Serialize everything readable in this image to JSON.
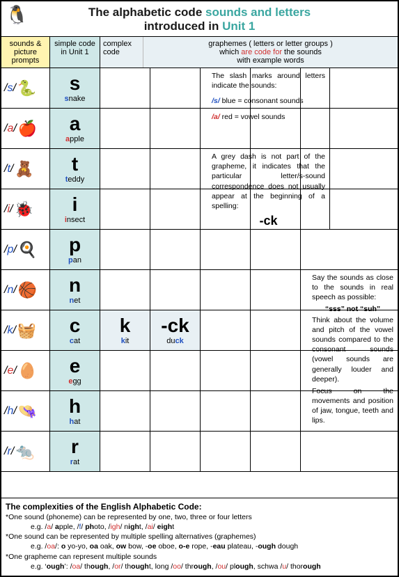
{
  "title": {
    "line1a": "The alphabetic code ",
    "line1b": "sounds and letters",
    "line2a": "introduced in ",
    "line2b": "Unit 1"
  },
  "headers": {
    "col1": "sounds & picture prompts",
    "col2": "simple code in Unit 1",
    "col3a": "complex code",
    "col3b1": "graphemes  ( letters or letter groups )",
    "col3b2a": "which ",
    "col3b2b": "are code for",
    "col3b2c": " the sounds",
    "col3b3": "with example words"
  },
  "rows": [
    {
      "sound": "s",
      "vowel": false,
      "icon": "🐍",
      "graph": "s",
      "word_pre": "",
      "word_hl": "s",
      "word_post": "nake"
    },
    {
      "sound": "a",
      "vowel": true,
      "icon": "🍎",
      "graph": "a",
      "word_pre": "",
      "word_hl": "a",
      "word_post": "pple"
    },
    {
      "sound": "t",
      "vowel": false,
      "icon": "🧸",
      "graph": "t",
      "word_pre": "",
      "word_hl": "t",
      "word_post": "eddy"
    },
    {
      "sound": "i",
      "vowel": true,
      "icon": "🐞",
      "graph": "i",
      "word_pre": "",
      "word_hl": "i",
      "word_post": "nsect"
    },
    {
      "sound": "p",
      "vowel": false,
      "icon": "🍳",
      "graph": "p",
      "word_pre": "",
      "word_hl": "p",
      "word_post": "an"
    },
    {
      "sound": "n",
      "vowel": false,
      "icon": "🏀",
      "graph": "n",
      "word_pre": "",
      "word_hl": "n",
      "word_post": "et"
    },
    {
      "sound": "k",
      "vowel": false,
      "icon": "🧺",
      "graph": "c",
      "word_pre": "",
      "word_hl": "c",
      "word_post": "at",
      "complex": [
        {
          "graph": "k",
          "word_pre": "",
          "word_hl": "k",
          "word_post": "it"
        },
        {
          "graph": "-ck",
          "word_pre": "du",
          "word_hl": "ck",
          "word_post": ""
        }
      ]
    },
    {
      "sound": "e",
      "vowel": true,
      "icon": "🥚",
      "graph": "e",
      "word_pre": "",
      "word_hl": "e",
      "word_post": "gg"
    },
    {
      "sound": "h",
      "vowel": false,
      "icon": "👒",
      "graph": "h",
      "word_pre": "",
      "word_hl": "h",
      "word_post": "at"
    },
    {
      "sound": "r",
      "vowel": false,
      "icon": "🐀",
      "graph": "r",
      "word_pre": "",
      "word_hl": "r",
      "word_post": "at"
    }
  ],
  "note1": {
    "l1": "The slash marks around letters indicate the sounds:",
    "l2a": "/s/",
    "l2b": "  blue = consonant sounds",
    "l3a": "/a/",
    "l3b": "  red = vowel sounds"
  },
  "note2": {
    "text": "A grey dash is not part of the grapheme, it indicates that the particular letter/s-sound correspondence does not usually appear at the beginning of a spelling:",
    "ck": "-ck"
  },
  "note3": {
    "l1": "Say the sounds as close to the sounds in real speech as possible:",
    "l2": "“sss” not “suh”",
    "l3": "Think about the volume and pitch of the vowel sounds compared to the consonant sounds (vowel sounds are generally louder and deeper).",
    "l4": "Focus on the movements and position of jaw, tongue, teeth and lips."
  },
  "footer": {
    "title": "The complexities of the English Alphabetic Code:",
    "p1": "*One sound (phoneme) can be represented by one, two, three or four letters",
    "p1eg": "e.g. /a/ apple, /f/ photo, /igh/ night, /ai/ eight",
    "p2": "*One sound can be represented by multiple spelling alternatives (graphemes)",
    "p2eg": "e.g. /oa/: o yo-yo, oa oak, ow bow, -oe oboe, o-e rope, -eau plateau, -ough dough",
    "p3": "*One grapheme can represent multiple sounds",
    "p3eg": "e.g. ‘ough’: /oa/ though, /or/ thought, long /oo/ through, /ou/ plough, schwa /u/ thorough"
  },
  "colors": {
    "yellow": "#fff4b0",
    "teal_bg": "#cfe8e8",
    "light_blue": "#e8f0f4",
    "teal_text": "#3aa6a0",
    "red": "#d03030",
    "blue": "#2050c0"
  }
}
